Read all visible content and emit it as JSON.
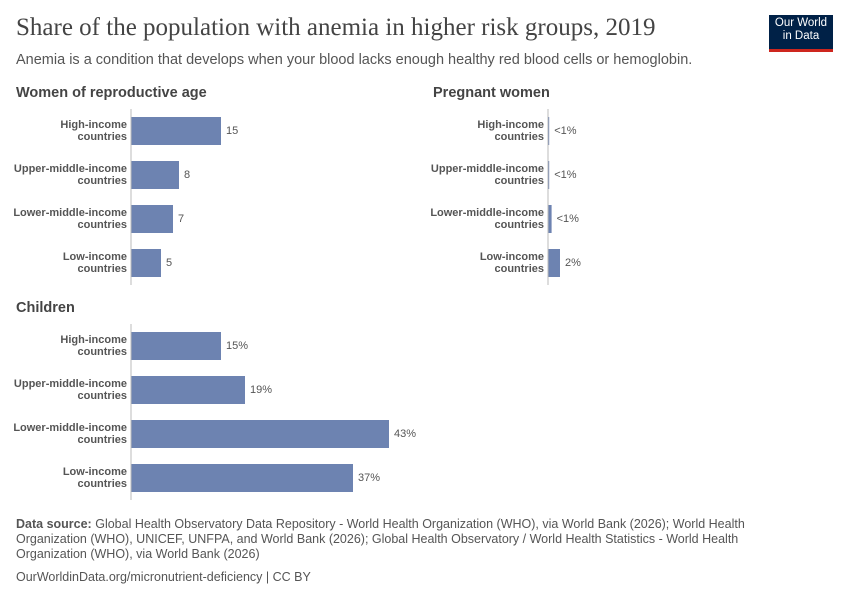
{
  "header": {
    "title": "Share of the population with anemia in higher risk groups, 2019",
    "subtitle": "Anemia is a condition that develops when your blood lacks enough healthy red blood cells or hemoglobin."
  },
  "logo": {
    "line1": "Our World",
    "line2": "in Data"
  },
  "footer": {
    "source_label": "Data source:",
    "source": "Global Health Observatory Data Repository - World Health Organization (WHO), via World Bank (2026); World Health Organization (WHO), UNICEF, UNFPA, and World Bank (2026); Global Health Observatory / World Health Statistics - World Health Organization (WHO), via World Bank (2026)",
    "url": "OurWorldinData.org/micronutrient-deficiency | CC BY"
  },
  "chart_data": [
    {
      "type": "bar",
      "orientation": "horizontal",
      "title": "Women of reproductive age",
      "categories": [
        "High-income countries",
        "Upper-middle-income countries",
        "Lower-middle-income countries",
        "Low-income countries"
      ],
      "values": [
        15,
        8,
        7,
        5
      ],
      "color": "#6d83b1",
      "xlim": [
        0,
        45
      ]
    },
    {
      "type": "bar",
      "orientation": "horizontal",
      "title": "Pregnant women",
      "categories": [
        "High-income countries",
        "Upper-middle-income countries",
        "Lower-middle-income countries",
        "Low-income countries"
      ],
      "values": [
        0.2,
        0.2,
        0.6,
        2
      ],
      "value_labels": [
        "<1%",
        "<1%",
        "<1%",
        "2%"
      ],
      "color": "#6d83b1",
      "xlim": [
        0,
        45
      ]
    },
    {
      "type": "bar",
      "orientation": "horizontal",
      "title": "Children",
      "categories": [
        "High-income countries",
        "Upper-middle-income countries",
        "Lower-middle-income countries",
        "Low-income countries"
      ],
      "values": [
        15,
        19,
        43,
        37
      ],
      "value_labels": [
        "15%",
        "19%",
        "43%",
        "37%"
      ],
      "color": "#6d83b1",
      "xlim": [
        0,
        45
      ]
    }
  ]
}
